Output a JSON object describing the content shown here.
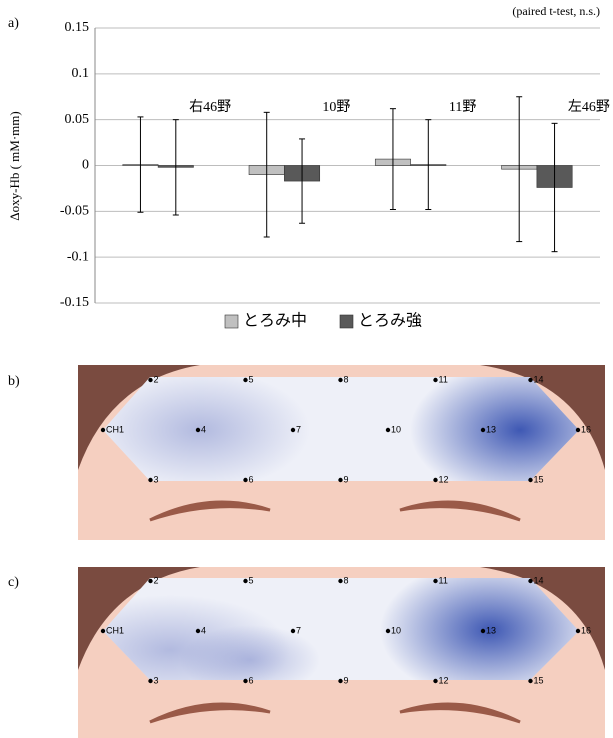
{
  "chart_data": {
    "type": "bar",
    "panel_label": "a)",
    "annotation": "(paired t-test,  n.s.)",
    "y_label": "Δoxy-Hb ( mM·mm)",
    "categories": [
      "右46野",
      "10野",
      "11野",
      "左46野"
    ],
    "series": [
      {
        "name": "とろみ中",
        "color": "#c0c0c0",
        "values": [
          0.001,
          -0.01,
          0.007,
          -0.004
        ],
        "errors": [
          0.052,
          0.068,
          0.055,
          0.079
        ]
      },
      {
        "name": "とろみ強",
        "color": "#595959",
        "values": [
          -0.002,
          -0.017,
          0.001,
          -0.024
        ],
        "errors": [
          0.052,
          0.046,
          0.049,
          0.07
        ]
      }
    ],
    "ylim": [
      -0.15,
      0.15
    ],
    "yticks": [
      -0.15,
      -0.1,
      -0.05,
      0,
      0.05,
      0.1,
      0.15
    ],
    "grid": true
  },
  "maps": [
    {
      "label": "b)",
      "channels": [
        "CH1",
        "2",
        "3",
        "4",
        "5",
        "6",
        "7",
        "8",
        "9",
        "10",
        "11",
        "12",
        "13",
        "14",
        "15",
        "16"
      ]
    },
    {
      "label": "c)",
      "channels": [
        "CH1",
        "2",
        "3",
        "4",
        "5",
        "6",
        "7",
        "8",
        "9",
        "10",
        "11",
        "12",
        "13",
        "14",
        "15",
        "16"
      ]
    }
  ]
}
